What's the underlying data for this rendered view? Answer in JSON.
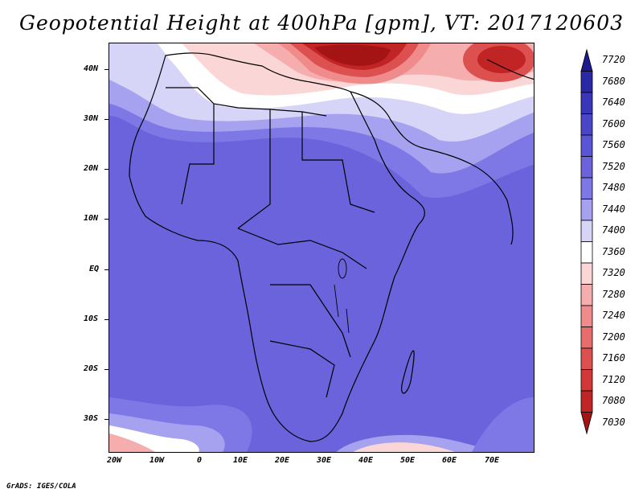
{
  "title": "Geopotential Height at 400hPa [gpm], VT: 2017120603",
  "credit": "GrADS: IGES/COLA",
  "lat_labels": [
    "40N",
    "30N",
    "20N",
    "10N",
    "EQ",
    "10S",
    "20S",
    "30S"
  ],
  "lon_labels": [
    "20W",
    "10W",
    "0",
    "10E",
    "20E",
    "30E",
    "40E",
    "50E",
    "60E",
    "70E"
  ],
  "colorbar": {
    "levels": [
      "7720",
      "7680",
      "7640",
      "7600",
      "7560",
      "7520",
      "7480",
      "7440",
      "7400",
      "7360",
      "7320",
      "7280",
      "7240",
      "7200",
      "7160",
      "7120",
      "7080",
      "7030"
    ],
    "colors": [
      "#1c1a8c",
      "#2b28a8",
      "#3a36bc",
      "#4b46c8",
      "#5a55d6",
      "#6b63dc",
      "#7d78e6",
      "#a6a2ef",
      "#d6d5f8",
      "#ffffff",
      "#fbd6d6",
      "#f5adad",
      "#ef8b8b",
      "#e76d6d",
      "#dd5050",
      "#d33838",
      "#c12424",
      "#a51414"
    ]
  },
  "map_colors": {
    "ocean_field": "#6b63dc",
    "deep": "#5a55d6",
    "mid": "#7d78e6",
    "light": "#a6a2ef",
    "pale": "#d6d5f8",
    "white": "#ffffff",
    "pink1": "#fbd6d6",
    "pink2": "#f5adad",
    "red1": "#ef8b8b",
    "red2": "#dd5050",
    "red3": "#c12424",
    "red4": "#a51414"
  }
}
